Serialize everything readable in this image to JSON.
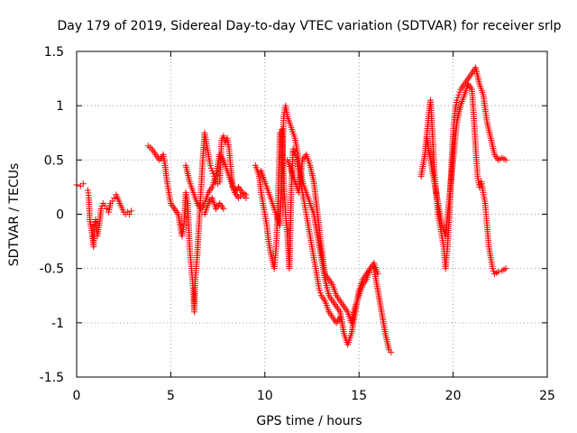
{
  "chart_data": {
    "type": "scatter",
    "title": "Day 179 of 2019, Sidereal Day-to-day VTEC variation (SDTVAR) for receiver srlp",
    "xlabel": "GPS time / hours",
    "ylabel": "SDTVAR / TECUs",
    "xlim": [
      0,
      25
    ],
    "ylim": [
      -1.5,
      1.5
    ],
    "xticks": [
      0,
      5,
      10,
      15,
      20,
      25
    ],
    "yticks": [
      -1.5,
      -1,
      -0.5,
      0,
      0.5,
      1,
      1.5
    ],
    "xtick_labels": [
      "0",
      "5",
      "10",
      "15",
      "20",
      "25"
    ],
    "ytick_labels": [
      "-1.5",
      "-1",
      "-0.5",
      "0",
      "0.5",
      "1",
      "1.5"
    ],
    "grid": true,
    "marker": "+",
    "color": "#ff0000",
    "series": [
      {
        "name": "SDTVAR",
        "tracks": [
          [
            [
              0.0,
              0.27
            ],
            [
              0.2,
              0.26
            ],
            [
              0.35,
              0.28
            ]
          ],
          [
            [
              0.6,
              0.22
            ],
            [
              0.65,
              0.15
            ],
            [
              0.7,
              -0.05
            ],
            [
              0.8,
              -0.15
            ],
            [
              0.9,
              -0.3
            ],
            [
              0.95,
              -0.1
            ],
            [
              1.0,
              -0.05
            ],
            [
              1.1,
              -0.2
            ],
            [
              1.2,
              -0.1
            ],
            [
              1.3,
              0.05
            ],
            [
              1.4,
              0.1
            ],
            [
              1.5,
              0.08
            ],
            [
              1.6,
              0.05
            ],
            [
              1.7,
              0.02
            ],
            [
              1.8,
              0.1
            ],
            [
              1.9,
              0.12
            ],
            [
              2.0,
              0.15
            ],
            [
              2.1,
              0.18
            ],
            [
              2.2,
              0.14
            ],
            [
              2.3,
              0.1
            ],
            [
              2.4,
              0.06
            ],
            [
              2.5,
              0.02
            ],
            [
              2.6,
              0.0
            ],
            [
              2.7,
              0.02
            ],
            [
              2.8,
              0.0
            ],
            [
              2.9,
              0.03
            ]
          ],
          [
            [
              3.8,
              0.63
            ],
            [
              4.0,
              0.6
            ],
            [
              4.2,
              0.55
            ],
            [
              4.4,
              0.5
            ],
            [
              4.6,
              0.55
            ],
            [
              4.7,
              0.45
            ],
            [
              4.8,
              0.3
            ],
            [
              4.9,
              0.2
            ],
            [
              5.0,
              0.1
            ],
            [
              5.2,
              0.05
            ],
            [
              5.4,
              0.0
            ],
            [
              5.6,
              -0.2
            ],
            [
              5.7,
              -0.1
            ],
            [
              5.8,
              0.2
            ],
            [
              5.9,
              0.1
            ],
            [
              6.0,
              -0.3
            ],
            [
              6.1,
              -0.5
            ],
            [
              6.2,
              -0.7
            ],
            [
              6.25,
              -0.9
            ],
            [
              6.3,
              -0.6
            ],
            [
              6.4,
              -0.4
            ],
            [
              6.5,
              -0.1
            ],
            [
              6.6,
              0.2
            ],
            [
              6.7,
              0.5
            ],
            [
              6.8,
              0.75
            ],
            [
              6.9,
              0.65
            ],
            [
              7.0,
              0.55
            ],
            [
              7.1,
              0.45
            ],
            [
              7.2,
              0.4
            ],
            [
              7.3,
              0.35
            ],
            [
              7.4,
              0.3
            ],
            [
              7.5,
              0.28
            ],
            [
              7.6,
              0.3
            ],
            [
              7.7,
              0.68
            ],
            [
              7.8,
              0.72
            ],
            [
              7.9,
              0.66
            ],
            [
              8.0,
              0.7
            ],
            [
              8.1,
              0.6
            ],
            [
              8.2,
              0.4
            ],
            [
              8.3,
              0.25
            ],
            [
              8.4,
              0.2
            ],
            [
              8.6,
              0.15
            ],
            [
              8.8,
              0.18
            ],
            [
              9.0,
              0.15
            ]
          ],
          [
            [
              5.8,
              0.45
            ],
            [
              6.0,
              0.3
            ],
            [
              6.2,
              0.2
            ],
            [
              6.4,
              0.1
            ],
            [
              6.6,
              0.05
            ],
            [
              6.8,
              0.1
            ],
            [
              7.0,
              0.2
            ],
            [
              7.2,
              0.25
            ],
            [
              7.4,
              0.35
            ],
            [
              7.6,
              0.55
            ],
            [
              7.8,
              0.5
            ],
            [
              8.0,
              0.4
            ],
            [
              8.2,
              0.3
            ],
            [
              8.4,
              0.2
            ],
            [
              8.6,
              0.25
            ],
            [
              8.8,
              0.2
            ],
            [
              9.0,
              0.18
            ]
          ],
          [
            [
              6.8,
              0.0
            ],
            [
              7.0,
              0.1
            ],
            [
              7.2,
              0.15
            ],
            [
              7.4,
              0.05
            ],
            [
              7.6,
              0.1
            ],
            [
              7.8,
              0.05
            ]
          ],
          [
            [
              9.5,
              0.45
            ],
            [
              9.7,
              0.35
            ],
            [
              9.8,
              0.2
            ],
            [
              9.9,
              0.1
            ],
            [
              10.0,
              0.0
            ],
            [
              10.1,
              -0.1
            ],
            [
              10.2,
              -0.25
            ],
            [
              10.3,
              -0.35
            ],
            [
              10.5,
              -0.5
            ],
            [
              10.6,
              -0.3
            ],
            [
              10.7,
              0.1
            ],
            [
              10.8,
              0.75
            ],
            [
              10.9,
              0.78
            ],
            [
              11.0,
              0.3
            ],
            [
              11.1,
              0.0
            ],
            [
              11.2,
              -0.2
            ],
            [
              11.3,
              -0.5
            ],
            [
              11.4,
              0.2
            ],
            [
              11.5,
              0.6
            ],
            [
              11.6,
              0.55
            ],
            [
              11.7,
              0.5
            ],
            [
              11.8,
              0.4
            ],
            [
              11.9,
              0.3
            ],
            [
              12.0,
              0.2
            ],
            [
              12.1,
              0.1
            ],
            [
              12.2,
              0.0
            ],
            [
              12.3,
              -0.1
            ],
            [
              12.4,
              -0.2
            ],
            [
              12.5,
              -0.3
            ],
            [
              12.6,
              -0.4
            ],
            [
              12.7,
              -0.5
            ],
            [
              12.8,
              -0.6
            ],
            [
              12.9,
              -0.7
            ],
            [
              13.0,
              -0.75
            ],
            [
              13.2,
              -0.8
            ],
            [
              13.4,
              -0.9
            ],
            [
              13.6,
              -0.95
            ],
            [
              13.8,
              -1.0
            ],
            [
              14.0,
              -0.95
            ]
          ],
          [
            [
              9.8,
              0.4
            ],
            [
              10.0,
              0.3
            ],
            [
              10.2,
              0.2
            ],
            [
              10.4,
              0.1
            ],
            [
              10.6,
              0.0
            ],
            [
              10.8,
              -0.1
            ],
            [
              11.0,
              0.9
            ],
            [
              11.1,
              1.0
            ],
            [
              11.2,
              0.9
            ],
            [
              11.4,
              0.8
            ],
            [
              11.6,
              0.7
            ],
            [
              11.8,
              0.5
            ],
            [
              12.0,
              0.3
            ],
            [
              12.2,
              0.2
            ],
            [
              12.4,
              0.1
            ],
            [
              12.6,
              0.0
            ],
            [
              12.8,
              -0.2
            ],
            [
              13.0,
              -0.4
            ],
            [
              13.2,
              -0.6
            ],
            [
              13.4,
              -0.75
            ],
            [
              13.6,
              -0.8
            ],
            [
              13.8,
              -0.85
            ],
            [
              14.0,
              -0.9
            ],
            [
              14.2,
              -1.1
            ],
            [
              14.4,
              -1.2
            ],
            [
              14.6,
              -1.1
            ],
            [
              14.8,
              -0.9
            ],
            [
              15.0,
              -0.7
            ],
            [
              15.2,
              -0.6
            ],
            [
              15.4,
              -0.55
            ],
            [
              15.6,
              -0.5
            ],
            [
              15.8,
              -0.5
            ],
            [
              16.0,
              -0.7
            ],
            [
              16.2,
              -0.9
            ],
            [
              16.4,
              -1.1
            ],
            [
              16.6,
              -1.25
            ],
            [
              16.7,
              -1.27
            ]
          ],
          [
            [
              11.2,
              0.5
            ],
            [
              11.4,
              0.4
            ],
            [
              11.6,
              0.3
            ],
            [
              11.8,
              0.2
            ],
            [
              12.0,
              0.5
            ],
            [
              12.2,
              0.55
            ],
            [
              12.4,
              0.45
            ],
            [
              12.6,
              0.3
            ],
            [
              12.8,
              0.0
            ],
            [
              13.0,
              -0.3
            ],
            [
              13.2,
              -0.55
            ],
            [
              13.4,
              -0.6
            ],
            [
              13.6,
              -0.65
            ],
            [
              13.8,
              -0.75
            ],
            [
              14.0,
              -0.8
            ],
            [
              14.2,
              -0.85
            ],
            [
              14.4,
              -0.9
            ],
            [
              14.6,
              -1.0
            ],
            [
              14.8,
              -0.85
            ],
            [
              15.0,
              -0.75
            ],
            [
              15.2,
              -0.65
            ],
            [
              15.4,
              -0.6
            ],
            [
              15.6,
              -0.5
            ],
            [
              15.8,
              -0.45
            ],
            [
              16.0,
              -0.55
            ]
          ],
          [
            [
              18.3,
              0.35
            ],
            [
              18.5,
              0.55
            ],
            [
              18.7,
              0.9
            ],
            [
              18.8,
              1.05
            ],
            [
              18.9,
              0.75
            ],
            [
              19.0,
              0.4
            ],
            [
              19.1,
              0.2
            ],
            [
              19.2,
              0.0
            ],
            [
              19.3,
              -0.1
            ],
            [
              19.4,
              -0.2
            ],
            [
              19.5,
              -0.3
            ],
            [
              19.6,
              -0.5
            ],
            [
              19.7,
              -0.3
            ],
            [
              19.8,
              0.0
            ],
            [
              19.9,
              0.4
            ],
            [
              20.0,
              0.75
            ],
            [
              20.1,
              0.95
            ],
            [
              20.2,
              1.05
            ],
            [
              20.3,
              1.1
            ],
            [
              20.4,
              1.15
            ],
            [
              20.6,
              1.2
            ],
            [
              20.8,
              1.25
            ],
            [
              21.0,
              1.3
            ],
            [
              21.2,
              1.35
            ],
            [
              21.4,
              1.2
            ],
            [
              21.6,
              1.1
            ],
            [
              21.8,
              0.85
            ],
            [
              22.0,
              0.7
            ],
            [
              22.2,
              0.55
            ],
            [
              22.4,
              0.5
            ],
            [
              22.6,
              0.52
            ],
            [
              22.8,
              0.5
            ]
          ],
          [
            [
              18.6,
              0.7
            ],
            [
              18.8,
              0.5
            ],
            [
              19.0,
              0.3
            ],
            [
              19.2,
              0.1
            ],
            [
              19.4,
              -0.1
            ],
            [
              19.6,
              -0.2
            ],
            [
              19.8,
              0.15
            ],
            [
              20.0,
              0.5
            ],
            [
              20.2,
              0.85
            ],
            [
              20.4,
              1.0
            ],
            [
              20.6,
              1.1
            ],
            [
              20.8,
              1.2
            ],
            [
              21.0,
              1.15
            ],
            [
              21.1,
              0.9
            ],
            [
              21.2,
              0.6
            ],
            [
              21.3,
              0.35
            ],
            [
              21.4,
              0.25
            ],
            [
              21.5,
              0.3
            ],
            [
              21.6,
              0.2
            ],
            [
              21.7,
              0.1
            ],
            [
              21.8,
              -0.1
            ],
            [
              21.9,
              -0.3
            ],
            [
              22.0,
              -0.4
            ],
            [
              22.1,
              -0.5
            ],
            [
              22.2,
              -0.55
            ],
            [
              22.4,
              -0.53
            ],
            [
              22.6,
              -0.52
            ],
            [
              22.8,
              -0.5
            ]
          ]
        ]
      }
    ]
  }
}
